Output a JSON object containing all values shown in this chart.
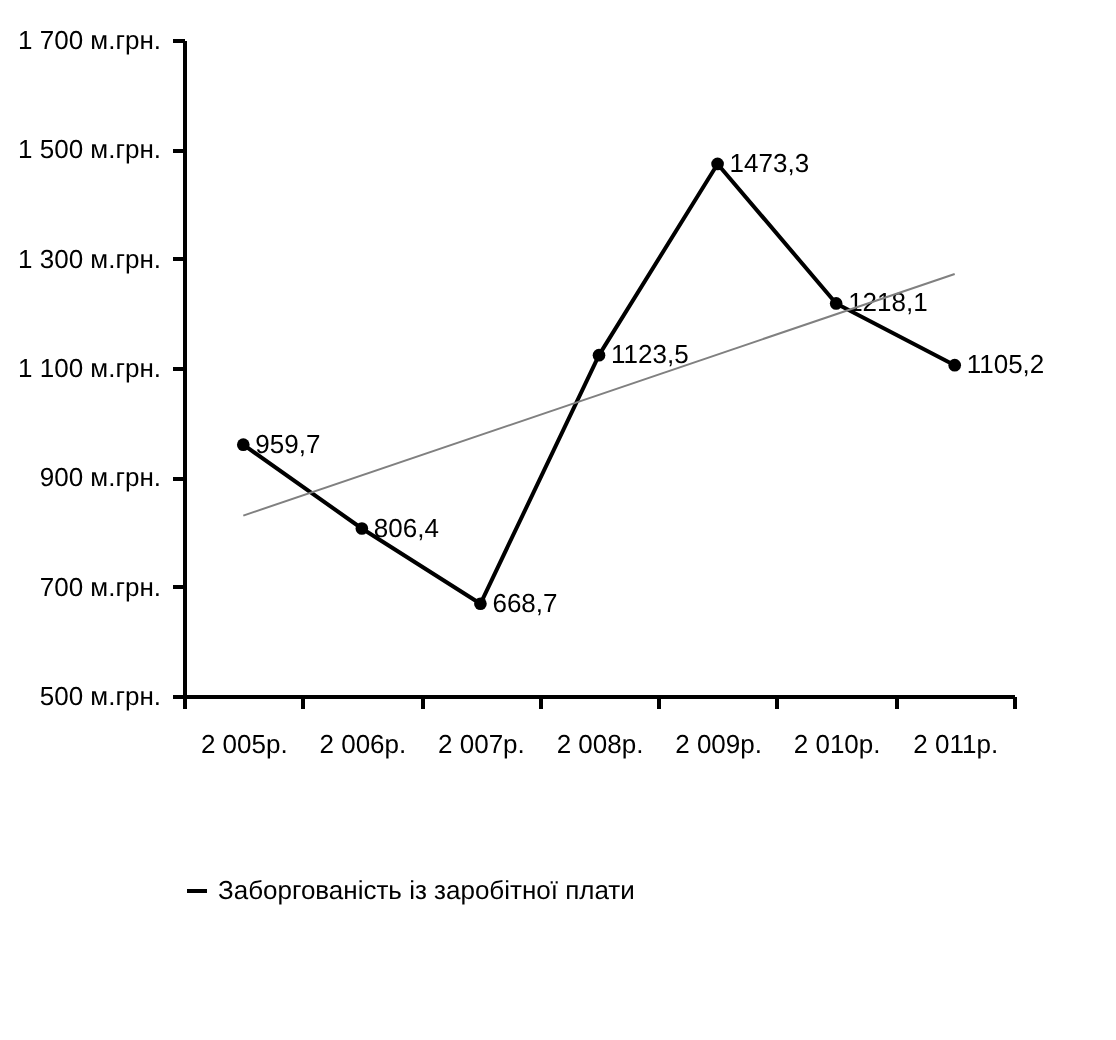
{
  "chart_data": {
    "type": "line",
    "categories": [
      "2 005р.",
      "2 006р.",
      "2 007р.",
      "2 008р.",
      "2 009р.",
      "2 010р.",
      "2 011р."
    ],
    "series": [
      {
        "name": "Заборгованість із заробітної плати",
        "color": "#000000",
        "marker": "circle",
        "values": [
          959.7,
          806.4,
          668.7,
          1123.5,
          1473.3,
          1218.1,
          1105.2
        ],
        "value_labels": [
          "959,7",
          "806,4",
          "668,7",
          "1123,5",
          "1473,3",
          "1218,1",
          "1105,2"
        ]
      },
      {
        "type": "line",
        "color": "#808080",
        "marker": "none",
        "x": [
          "2 005р.",
          "2 011р."
        ],
        "values": [
          830,
          1272
        ]
      }
    ],
    "ylim": [
      500,
      1700
    ],
    "yticks": [
      {
        "value": 500,
        "label": "500 м.грн."
      },
      {
        "value": 700,
        "label": "700 м.грн."
      },
      {
        "value": 900,
        "label": "900 м.грн."
      },
      {
        "value": 1100,
        "label": "1 100 м.грн."
      },
      {
        "value": 1300,
        "label": "1 300 м.грн."
      },
      {
        "value": 1500,
        "label": "1 500 м.грн."
      },
      {
        "value": 1700,
        "label": "1 700 м.грн."
      }
    ],
    "legend": "bottom",
    "grid": false
  }
}
